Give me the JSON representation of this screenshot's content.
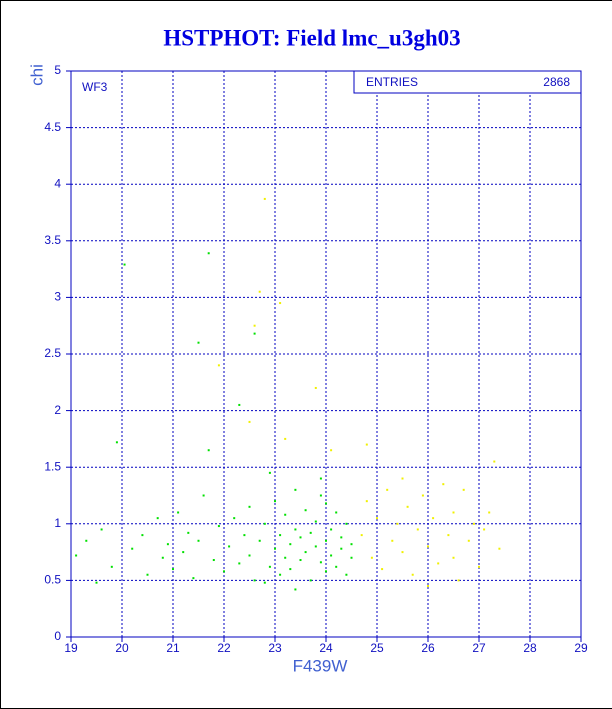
{
  "chart_data": {
    "type": "scatter",
    "title": "HSTPHOT: Field lmc_u3gh03",
    "x_label": "F439W",
    "y_label": "chi",
    "annotation": "WF3",
    "stats_label": "ENTRIES",
    "entries": 2868,
    "xlim": [
      19,
      29
    ],
    "xticks": [
      19,
      20,
      21,
      22,
      23,
      24,
      25,
      26,
      27,
      28,
      29
    ],
    "ylim": [
      0,
      5
    ],
    "yticks": [
      0,
      0.5,
      1,
      1.5,
      2,
      2.5,
      3,
      3.5,
      4,
      4.5,
      5
    ],
    "grid": true,
    "series": [
      {
        "color": "#00e000",
        "x": [
          19.1,
          19.3,
          19.5,
          19.6,
          19.8,
          19.9,
          20.05,
          20.2,
          20.4,
          20.5,
          20.7,
          20.8,
          20.9,
          21.0,
          21.1,
          21.2,
          21.3,
          21.4,
          21.5,
          21.5,
          21.6,
          21.7,
          21.7,
          21.8,
          21.9,
          22.0,
          22.1,
          22.2,
          22.3,
          22.3,
          22.4,
          22.5,
          22.5,
          22.6,
          22.6,
          22.7,
          22.8,
          22.9,
          22.9,
          23.0,
          23.0,
          23.1,
          23.1,
          23.2,
          23.2,
          23.3,
          23.3,
          23.4,
          23.4,
          23.5,
          23.5,
          23.6,
          23.6,
          23.7,
          23.7,
          23.8,
          23.8,
          23.9,
          23.9,
          24.0,
          24.0,
          24.1,
          24.1,
          24.2,
          24.2,
          24.3,
          24.3,
          24.4,
          24.4,
          24.5,
          24.5,
          23.9,
          23.4,
          22.8,
          24.0
        ],
        "values": [
          0.72,
          0.85,
          0.48,
          0.95,
          0.62,
          1.72,
          3.29,
          0.78,
          0.9,
          0.55,
          1.05,
          0.7,
          0.82,
          0.6,
          1.1,
          0.75,
          0.92,
          0.52,
          2.6,
          0.85,
          1.25,
          3.39,
          1.65,
          0.68,
          0.98,
          0.58,
          0.8,
          1.05,
          2.05,
          0.65,
          0.9,
          0.72,
          1.15,
          2.68,
          0.5,
          0.85,
          1.0,
          1.45,
          0.62,
          0.78,
          1.2,
          0.55,
          0.9,
          0.7,
          1.08,
          0.82,
          0.6,
          0.95,
          1.3,
          0.68,
          0.88,
          0.75,
          1.12,
          0.5,
          0.92,
          0.8,
          1.02,
          0.66,
          1.4,
          0.85,
          0.58,
          0.95,
          0.72,
          1.1,
          0.62,
          0.88,
          0.78,
          1.0,
          0.55,
          0.82,
          0.7,
          1.25,
          0.42,
          0.48,
          1.18
        ]
      },
      {
        "color": "#f0f000",
        "x": [
          22.8,
          22.7,
          23.1,
          22.6,
          21.9,
          23.8,
          22.5,
          23.2,
          24.1,
          24.8,
          27.3,
          24.7,
          24.8,
          24.9,
          25.0,
          25.1,
          25.2,
          25.3,
          25.4,
          25.5,
          25.6,
          25.7,
          25.8,
          25.9,
          26.0,
          26.1,
          26.2,
          26.3,
          26.4,
          26.5,
          26.5,
          26.6,
          26.7,
          26.8,
          26.9,
          27.0,
          27.1,
          27.2,
          27.4,
          25.5,
          26.0
        ],
        "values": [
          3.87,
          3.05,
          2.95,
          2.75,
          2.4,
          2.2,
          1.9,
          1.75,
          1.65,
          1.7,
          1.55,
          0.9,
          1.2,
          0.7,
          1.05,
          0.6,
          1.3,
          0.85,
          1.0,
          0.75,
          1.15,
          0.55,
          0.95,
          1.25,
          0.8,
          1.05,
          0.65,
          1.35,
          0.9,
          0.7,
          1.1,
          0.5,
          1.3,
          0.85,
          1.0,
          0.62,
          0.95,
          1.1,
          0.78,
          1.4,
          0.45
        ]
      }
    ]
  }
}
